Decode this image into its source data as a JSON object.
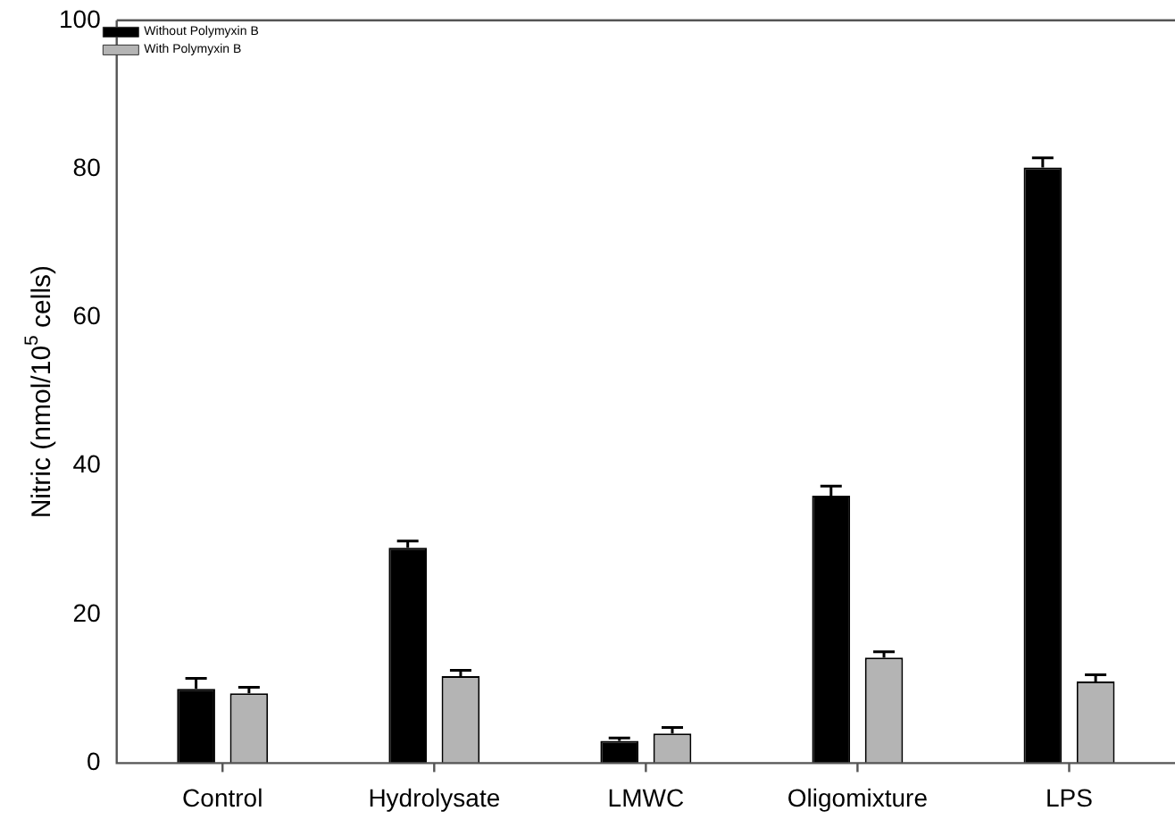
{
  "chart_data": {
    "type": "bar",
    "ylabel": "Nitric (nmol/10$^{5}$ cells)",
    "categories": [
      "Control",
      "Hydrolysate",
      "LMWC",
      "Oligomixture",
      "LPS"
    ],
    "series": [
      {
        "name": "Without Polymyxin B",
        "color": "#000000",
        "values": [
          10.0,
          29.0,
          3.0,
          36.0,
          80.2
        ],
        "errors": [
          1.4,
          0.9,
          0.4,
          1.3,
          1.3
        ]
      },
      {
        "name": "With Polymyxin B",
        "color": "#b4b4b4",
        "values": [
          9.4,
          11.7,
          4.0,
          14.2,
          11.0
        ],
        "errors": [
          0.8,
          0.8,
          0.8,
          0.8,
          0.9
        ]
      }
    ],
    "ylim": [
      0,
      100
    ],
    "yticks": [
      0,
      20,
      40,
      60,
      80,
      100
    ],
    "grid": false,
    "legend": "top left"
  }
}
